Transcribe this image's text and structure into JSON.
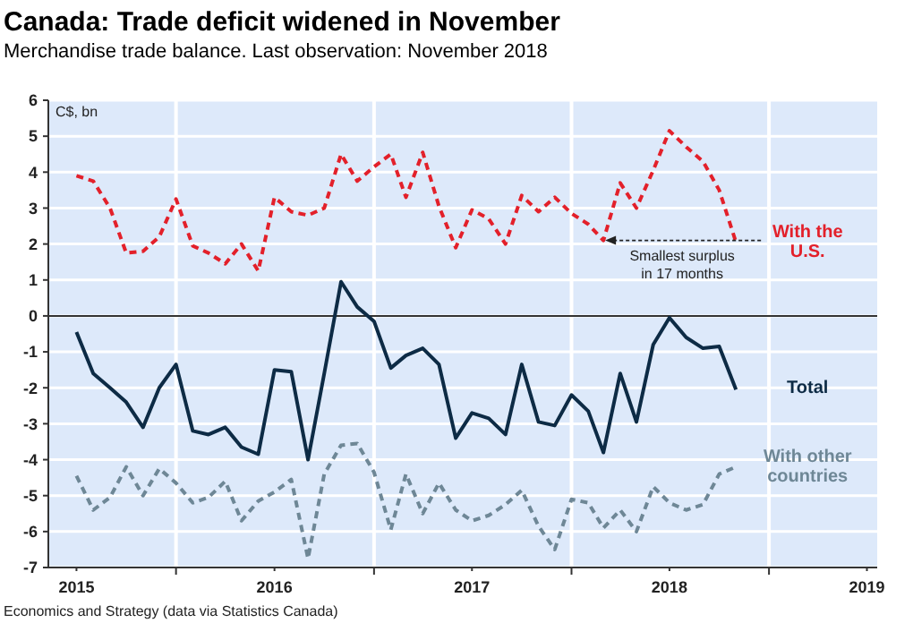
{
  "chart_data": {
    "type": "line",
    "title": "Canada: Trade deficit widened in November",
    "subtitle": "Merchandise trade balance. Last observation: November 2018",
    "ylabel": "C$, bn",
    "x": [
      "2015-07",
      "2015-08",
      "2015-09",
      "2015-10",
      "2015-11",
      "2015-12",
      "2016-01",
      "2016-02",
      "2016-03",
      "2016-04",
      "2016-05",
      "2016-06",
      "2016-07",
      "2016-08",
      "2016-09",
      "2016-10",
      "2016-11",
      "2016-12",
      "2017-01",
      "2017-02",
      "2017-03",
      "2017-04",
      "2017-05",
      "2017-06",
      "2017-07",
      "2017-08",
      "2017-09",
      "2017-10",
      "2017-11",
      "2017-12",
      "2018-01",
      "2018-02",
      "2018-03",
      "2018-04",
      "2018-05",
      "2018-06",
      "2018-07",
      "2018-08",
      "2018-09",
      "2018-10",
      "2018-11"
    ],
    "series": [
      {
        "name": "With the U.S.",
        "color": "#e3202a",
        "line_style": "dashed",
        "values": [
          3.9,
          3.75,
          3.0,
          1.75,
          1.8,
          2.2,
          3.25,
          1.95,
          1.75,
          1.45,
          2.0,
          1.25,
          3.3,
          2.9,
          2.8,
          3.0,
          4.5,
          3.75,
          4.15,
          4.5,
          3.3,
          4.55,
          3.05,
          1.9,
          2.95,
          2.7,
          2.0,
          3.35,
          2.9,
          3.3,
          2.85,
          2.55,
          2.1,
          3.7,
          3.0,
          4.05,
          5.15,
          4.7,
          4.3,
          3.5,
          2.05
        ]
      },
      {
        "name": "Total",
        "color": "#0d2b45",
        "line_style": "solid",
        "values": [
          -0.45,
          -1.6,
          -2.0,
          -2.4,
          -3.1,
          -2.0,
          -1.35,
          -3.2,
          -3.3,
          -3.1,
          -3.65,
          -3.85,
          -1.5,
          -1.55,
          -4.0,
          -1.6,
          0.95,
          0.25,
          -0.15,
          -1.45,
          -1.1,
          -0.9,
          -1.35,
          -3.4,
          -2.7,
          -2.85,
          -3.3,
          -1.35,
          -2.95,
          -3.05,
          -2.2,
          -2.65,
          -3.8,
          -1.6,
          -2.95,
          -0.8,
          -0.05,
          -0.6,
          -0.9,
          -0.85,
          -2.05
        ]
      },
      {
        "name": "With other countries",
        "color": "#6e8796",
        "line_style": "dashed",
        "values": [
          -4.45,
          -5.4,
          -5.05,
          -4.2,
          -5.0,
          -4.25,
          -4.65,
          -5.2,
          -5.05,
          -4.6,
          -5.7,
          -5.15,
          -4.9,
          -4.55,
          -6.75,
          -4.4,
          -3.6,
          -3.55,
          -4.35,
          -5.95,
          -4.4,
          -5.5,
          -4.65,
          -5.4,
          -5.7,
          -5.55,
          -5.25,
          -4.85,
          -5.85,
          -6.5,
          -5.1,
          -5.2,
          -5.9,
          -5.4,
          -6.0,
          -4.75,
          -5.2,
          -5.4,
          -5.25,
          -4.4,
          -4.2
        ]
      }
    ],
    "xlim": [
      "2015-05-10",
      "2019-07-20"
    ],
    "xticks": [
      {
        "value": "2015-07-01",
        "label": "2015"
      },
      {
        "value": "2016-01-01",
        "label": null
      },
      {
        "value": "2016-07-01",
        "label": "2016"
      },
      {
        "value": "2017-01-01",
        "label": null
      },
      {
        "value": "2017-07-01",
        "label": "2017"
      },
      {
        "value": "2018-01-01",
        "label": null
      },
      {
        "value": "2018-07-01",
        "label": "2018"
      },
      {
        "value": "2019-01-01",
        "label": null
      },
      {
        "value": "2019-07-01",
        "label": "2019"
      }
    ],
    "ylim": [
      -7,
      6
    ],
    "yticks": [
      -7,
      -6,
      -5,
      -4,
      -3,
      -2,
      -1,
      0,
      1,
      2,
      3,
      4,
      5,
      6
    ],
    "ref_lines": [
      {
        "axis": "y",
        "value": 0,
        "color": "#333333"
      }
    ],
    "grid": true,
    "legend": false,
    "marker": "none",
    "annotations": [
      {
        "text": "Smallest surplus in 17 months",
        "x": "2018-03",
        "y": 2.1
      },
      "Economics and Strategy (data via Statistics Canada)"
    ]
  }
}
